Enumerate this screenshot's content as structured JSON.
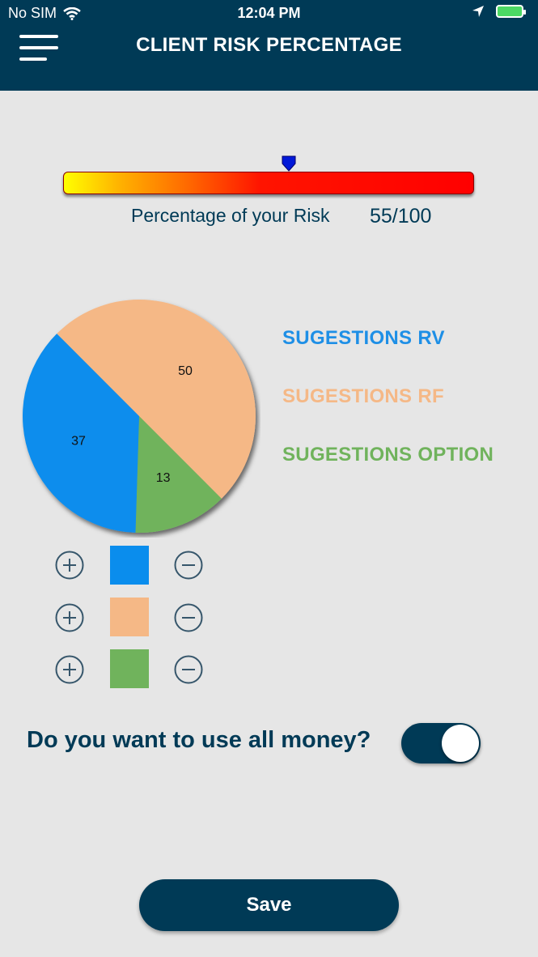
{
  "status_bar": {
    "carrier": "No SIM",
    "time": "12:04 PM"
  },
  "header": {
    "title": "CLIENT RISK PERCENTAGE"
  },
  "risk": {
    "label": "Percentage of your Risk",
    "value_text": "55/100",
    "level": 0.55
  },
  "chart_data": {
    "type": "pie",
    "slices": [
      {
        "label": "SUGESTIONS RV",
        "value": 37,
        "color": "#0a8ded"
      },
      {
        "label": "SUGESTIONS RF",
        "value": 50,
        "color": "#f5b886"
      },
      {
        "label": "SUGESTIONS OPTION",
        "value": 13,
        "color": "#70b35c"
      }
    ]
  },
  "legend": [
    {
      "label": "SUGESTIONS RV",
      "color": "#0a8ded"
    },
    {
      "label": "SUGESTIONS RF",
      "color": "#f5b886"
    },
    {
      "label": "SUGESTIONS OPTION",
      "color": "#70b35c"
    }
  ],
  "controls": [
    {
      "color": "#0a8ded",
      "plus_icon": "plus-circle-icon",
      "minus_icon": "minus-circle-icon"
    },
    {
      "color": "#f5b886",
      "plus_icon": "plus-circle-icon",
      "minus_icon": "minus-circle-icon"
    },
    {
      "color": "#70b35c",
      "plus_icon": "plus-circle-icon",
      "minus_icon": "minus-circle-icon"
    }
  ],
  "money_question": {
    "label": "Do you want to use all money?",
    "toggle_on": true
  },
  "save_label": "Save",
  "colors": {
    "primary": "#003a56",
    "background": "#e6e6e6"
  }
}
